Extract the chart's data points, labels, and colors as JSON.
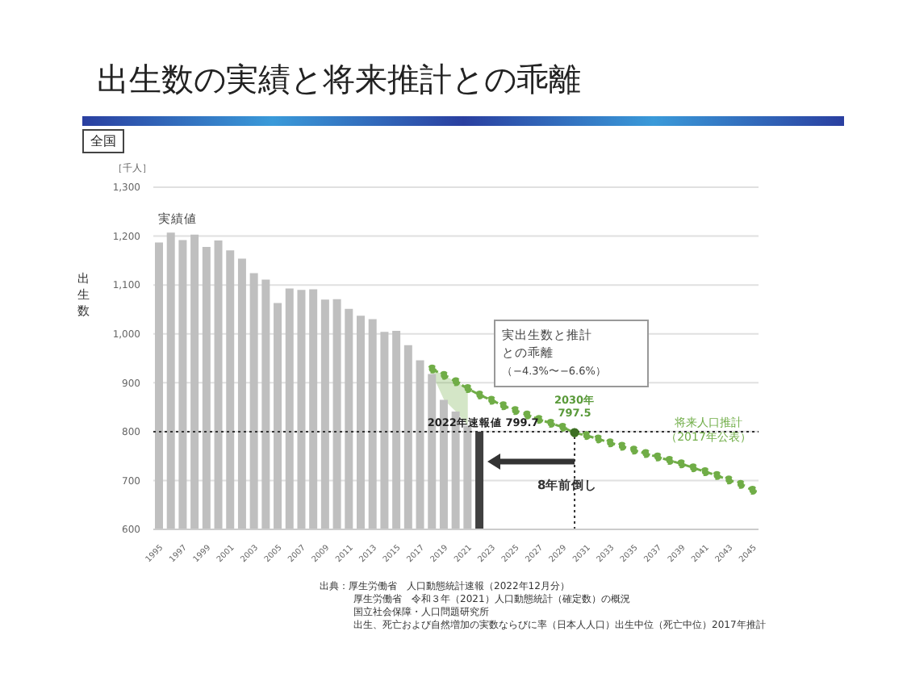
{
  "chart_data": {
    "type": "bar",
    "title": "出生数の実績と将来推計との乖離",
    "subtitle": "全国",
    "ylabel": "出生数",
    "xlim": [
      1994.5,
      2045.5
    ],
    "xticks": [
      1995,
      1997,
      1999,
      2001,
      2003,
      2005,
      2007,
      2009,
      2011,
      2013,
      2015,
      2017,
      2019,
      2021,
      2023,
      2025,
      2027,
      2029,
      2031,
      2033,
      2035,
      2037,
      2039,
      2041,
      2043,
      2045
    ],
    "ylim": [
      600,
      1300
    ],
    "yticks": [
      600,
      700,
      800,
      900,
      {
        "value": 1000,
        "label": "1,000"
      },
      {
        "value": 1100,
        "label": "1,100"
      },
      {
        "value": 1200,
        "label": "1,200"
      },
      {
        "value": 1300,
        "label": "1,300"
      }
    ],
    "grid": "y",
    "series": [
      {
        "x": [
          1995,
          1996,
          1997,
          1998,
          1999,
          2000,
          2001,
          2002,
          2003,
          2004,
          2005,
          2006,
          2007,
          2008,
          2009,
          2010,
          2011,
          2012,
          2013,
          2014,
          2015,
          2016,
          2017,
          2018,
          2019,
          2020,
          2021,
          2022
        ],
        "values": [
          1187,
          1207,
          1192,
          1203,
          1178,
          1191,
          1171,
          1154,
          1124,
          1111,
          1063,
          1093,
          1090,
          1091,
          1070,
          1071,
          1051,
          1037,
          1030,
          1004,
          1006,
          977,
          946,
          918,
          865,
          841,
          812,
          799.7
        ],
        "colors": [
          "#bfbfbf",
          "#bfbfbf",
          "#bfbfbf",
          "#bfbfbf",
          "#bfbfbf",
          "#bfbfbf",
          "#bfbfbf",
          "#bfbfbf",
          "#bfbfbf",
          "#bfbfbf",
          "#bfbfbf",
          "#bfbfbf",
          "#bfbfbf",
          "#bfbfbf",
          "#bfbfbf",
          "#bfbfbf",
          "#bfbfbf",
          "#bfbfbf",
          "#bfbfbf",
          "#bfbfbf",
          "#bfbfbf",
          "#bfbfbf",
          "#bfbfbf",
          "#bfbfbf",
          "#bfbfbf",
          "#bfbfbf",
          "#bfbfbf",
          "#404040"
        ]
      },
      {
        "type": "line",
        "name": "将来人口推計（2017年公表）",
        "color": "#70ad47",
        "marker": "circle",
        "line_style": "dashed",
        "x": [
          2018,
          2019,
          2020,
          2021,
          2022,
          2023,
          2024,
          2025,
          2026,
          2027,
          2028,
          2029,
          2030,
          2031,
          2032,
          2033,
          2034,
          2035,
          2036,
          2037,
          2038,
          2039,
          2040,
          2041,
          2042,
          2043,
          2044,
          2045
        ],
        "values": [
          928,
          915,
          902,
          888,
          875,
          864,
          853,
          843,
          834,
          825,
          817,
          809,
          797.5,
          792,
          785,
          777,
          770,
          762,
          755,
          748,
          741,
          734,
          726,
          718,
          710,
          701,
          692,
          680
        ],
        "lower": [
          918,
          865,
          841,
          812,
          null,
          null,
          null,
          null,
          null,
          null,
          null,
          null,
          null,
          null,
          null,
          null,
          null,
          null,
          null,
          null,
          null,
          null,
          null,
          null,
          null,
          null,
          null,
          null
        ],
        "upper": [
          928,
          915,
          902,
          888,
          null,
          null,
          null,
          null,
          null,
          null,
          null,
          null,
          null,
          null,
          null,
          null,
          null,
          null,
          null,
          null,
          null,
          null,
          null,
          null,
          null,
          null,
          null,
          null
        ]
      }
    ],
    "ref_lines": [
      {
        "axis": "y",
        "value": 799.7,
        "label": "2022年速報値 799.7",
        "color": "#333333",
        "line_style": "dotted"
      },
      {
        "axis": "x",
        "value": 2030,
        "color": "#333333",
        "line_style": "dotted"
      }
    ],
    "annotations": [
      "［千人］",
      "実績値",
      "実出生数と推計との乖離",
      "（−4.3%〜−6.6%）",
      {
        "text": "2030年\n797.5",
        "x": 2030,
        "y": 797.5
      },
      "8年前倒し",
      "出典：厚生労働省　人口動態統計速報（2022年12月分）",
      "厚生労働省　令和３年（2021）人口動態統計（確定数）の概況",
      "国立社会保障・人口問題研究所",
      "出生、死亡および自然増加の実数ならびに率（日本人人口）出生中位（死亡中位）2017年推計"
    ]
  }
}
